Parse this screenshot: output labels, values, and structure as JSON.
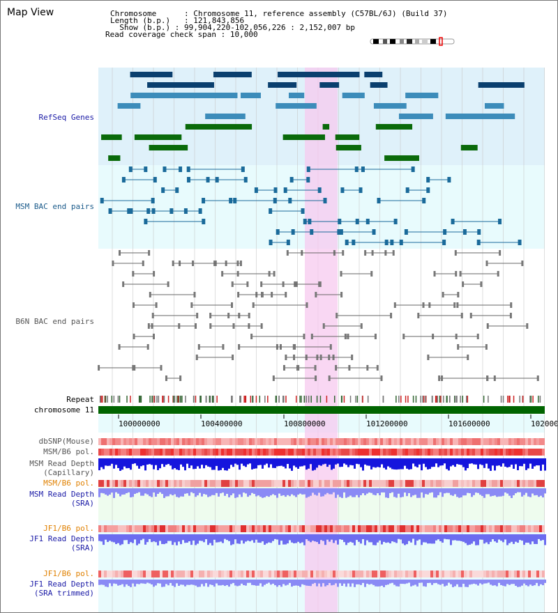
{
  "title": "Map View",
  "info": {
    "chromosome_key": "Chromosome      ",
    "chromosome_value": "Chromosome 11, reference assembly (C57BL/6J) (Build 37)",
    "length_key": "Length (b.p.) ",
    "length_value": "121,843,856",
    "show_key": "  Show (b.p.) ",
    "show_value": "99,904,220-102,056,226 : 2,152,007 bp",
    "span_key": "Read coverage check span ",
    "span_value": "10,000"
  },
  "tracks": {
    "refseq": "RefSeq Genes",
    "msm_bac": "MSM BAC end pairs",
    "b6n_bac": "B6N BAC end pairs",
    "repeat": "Repeat",
    "chromosome": "chromosome 11",
    "dbsnp": "dbSNP(Mouse)",
    "msm_b6_pol_1": "MSM/B6 pol.",
    "msm_read_depth_cap_1": "MSM Read Depth",
    "msm_read_depth_cap_2": "(Capillary)",
    "msm_b6_pol_2": "MSM/B6 pol.",
    "msm_read_depth_sra_1": "MSM Read Depth",
    "msm_read_depth_sra_2": "(SRA)",
    "jf1_b6_pol_1": "JF1/B6 pol.",
    "jf1_read_depth_sra_1": "JF1 Read Depth",
    "jf1_read_depth_sra_2": "(SRA)",
    "jf1_b6_pol_2": "JF1/B6 pol.",
    "jf1_read_depth_trim_1": "JF1 Read Depth",
    "jf1_read_depth_trim_2": "(SRA trimmed)"
  },
  "axis_ticks": [
    "100000000",
    "100400000",
    "100800000",
    "101200000",
    "101600000",
    "102000"
  ],
  "colors": {
    "label_blue": "#1a1aa6",
    "label_teal": "#1a5a8a",
    "label_gray": "#555555",
    "label_orange": "#e08000",
    "highlight": "#f7d2f0",
    "refseq_bg": "#dff1fa",
    "msm_bg": "#e8fbfd",
    "chrom_green": "#006400"
  }
}
